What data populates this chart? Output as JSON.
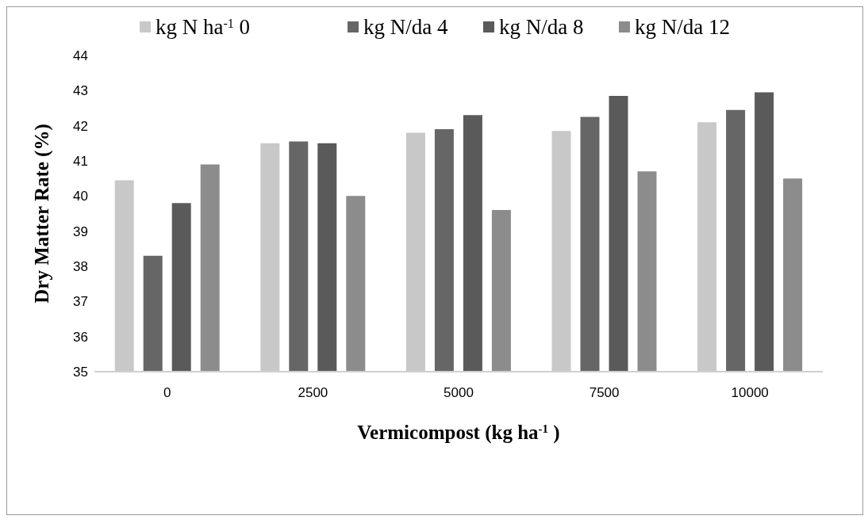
{
  "chart_data": {
    "type": "bar",
    "ylabel": "Dry Matter Rate (%)",
    "xlabel": "Vermicompost (kg ha$^{-1}$ )",
    "categories": [
      "0",
      "2500",
      "5000",
      "7500",
      "10000"
    ],
    "series": [
      {
        "name": "kg N ha$^{-1}$ 0",
        "color": "#c8c8c8",
        "values": [
          40.45,
          41.5,
          41.8,
          41.85,
          42.1
        ]
      },
      {
        "name": "kg N/da 4",
        "color": "#666666",
        "values": [
          38.3,
          41.55,
          41.9,
          42.25,
          42.45
        ]
      },
      {
        "name": "kg N/da 8",
        "color": "#5a5a5a",
        "values": [
          39.8,
          41.5,
          42.3,
          42.85,
          42.95
        ]
      },
      {
        "name": "kg N/da 12",
        "color": "#8c8c8c",
        "values": [
          40.9,
          40.0,
          39.6,
          40.7,
          40.5
        ]
      }
    ],
    "ylim": [
      35,
      44
    ],
    "yticks": [
      35,
      36,
      37,
      38,
      39,
      40,
      41,
      42,
      43,
      44
    ],
    "grid": false,
    "legend": "top"
  }
}
